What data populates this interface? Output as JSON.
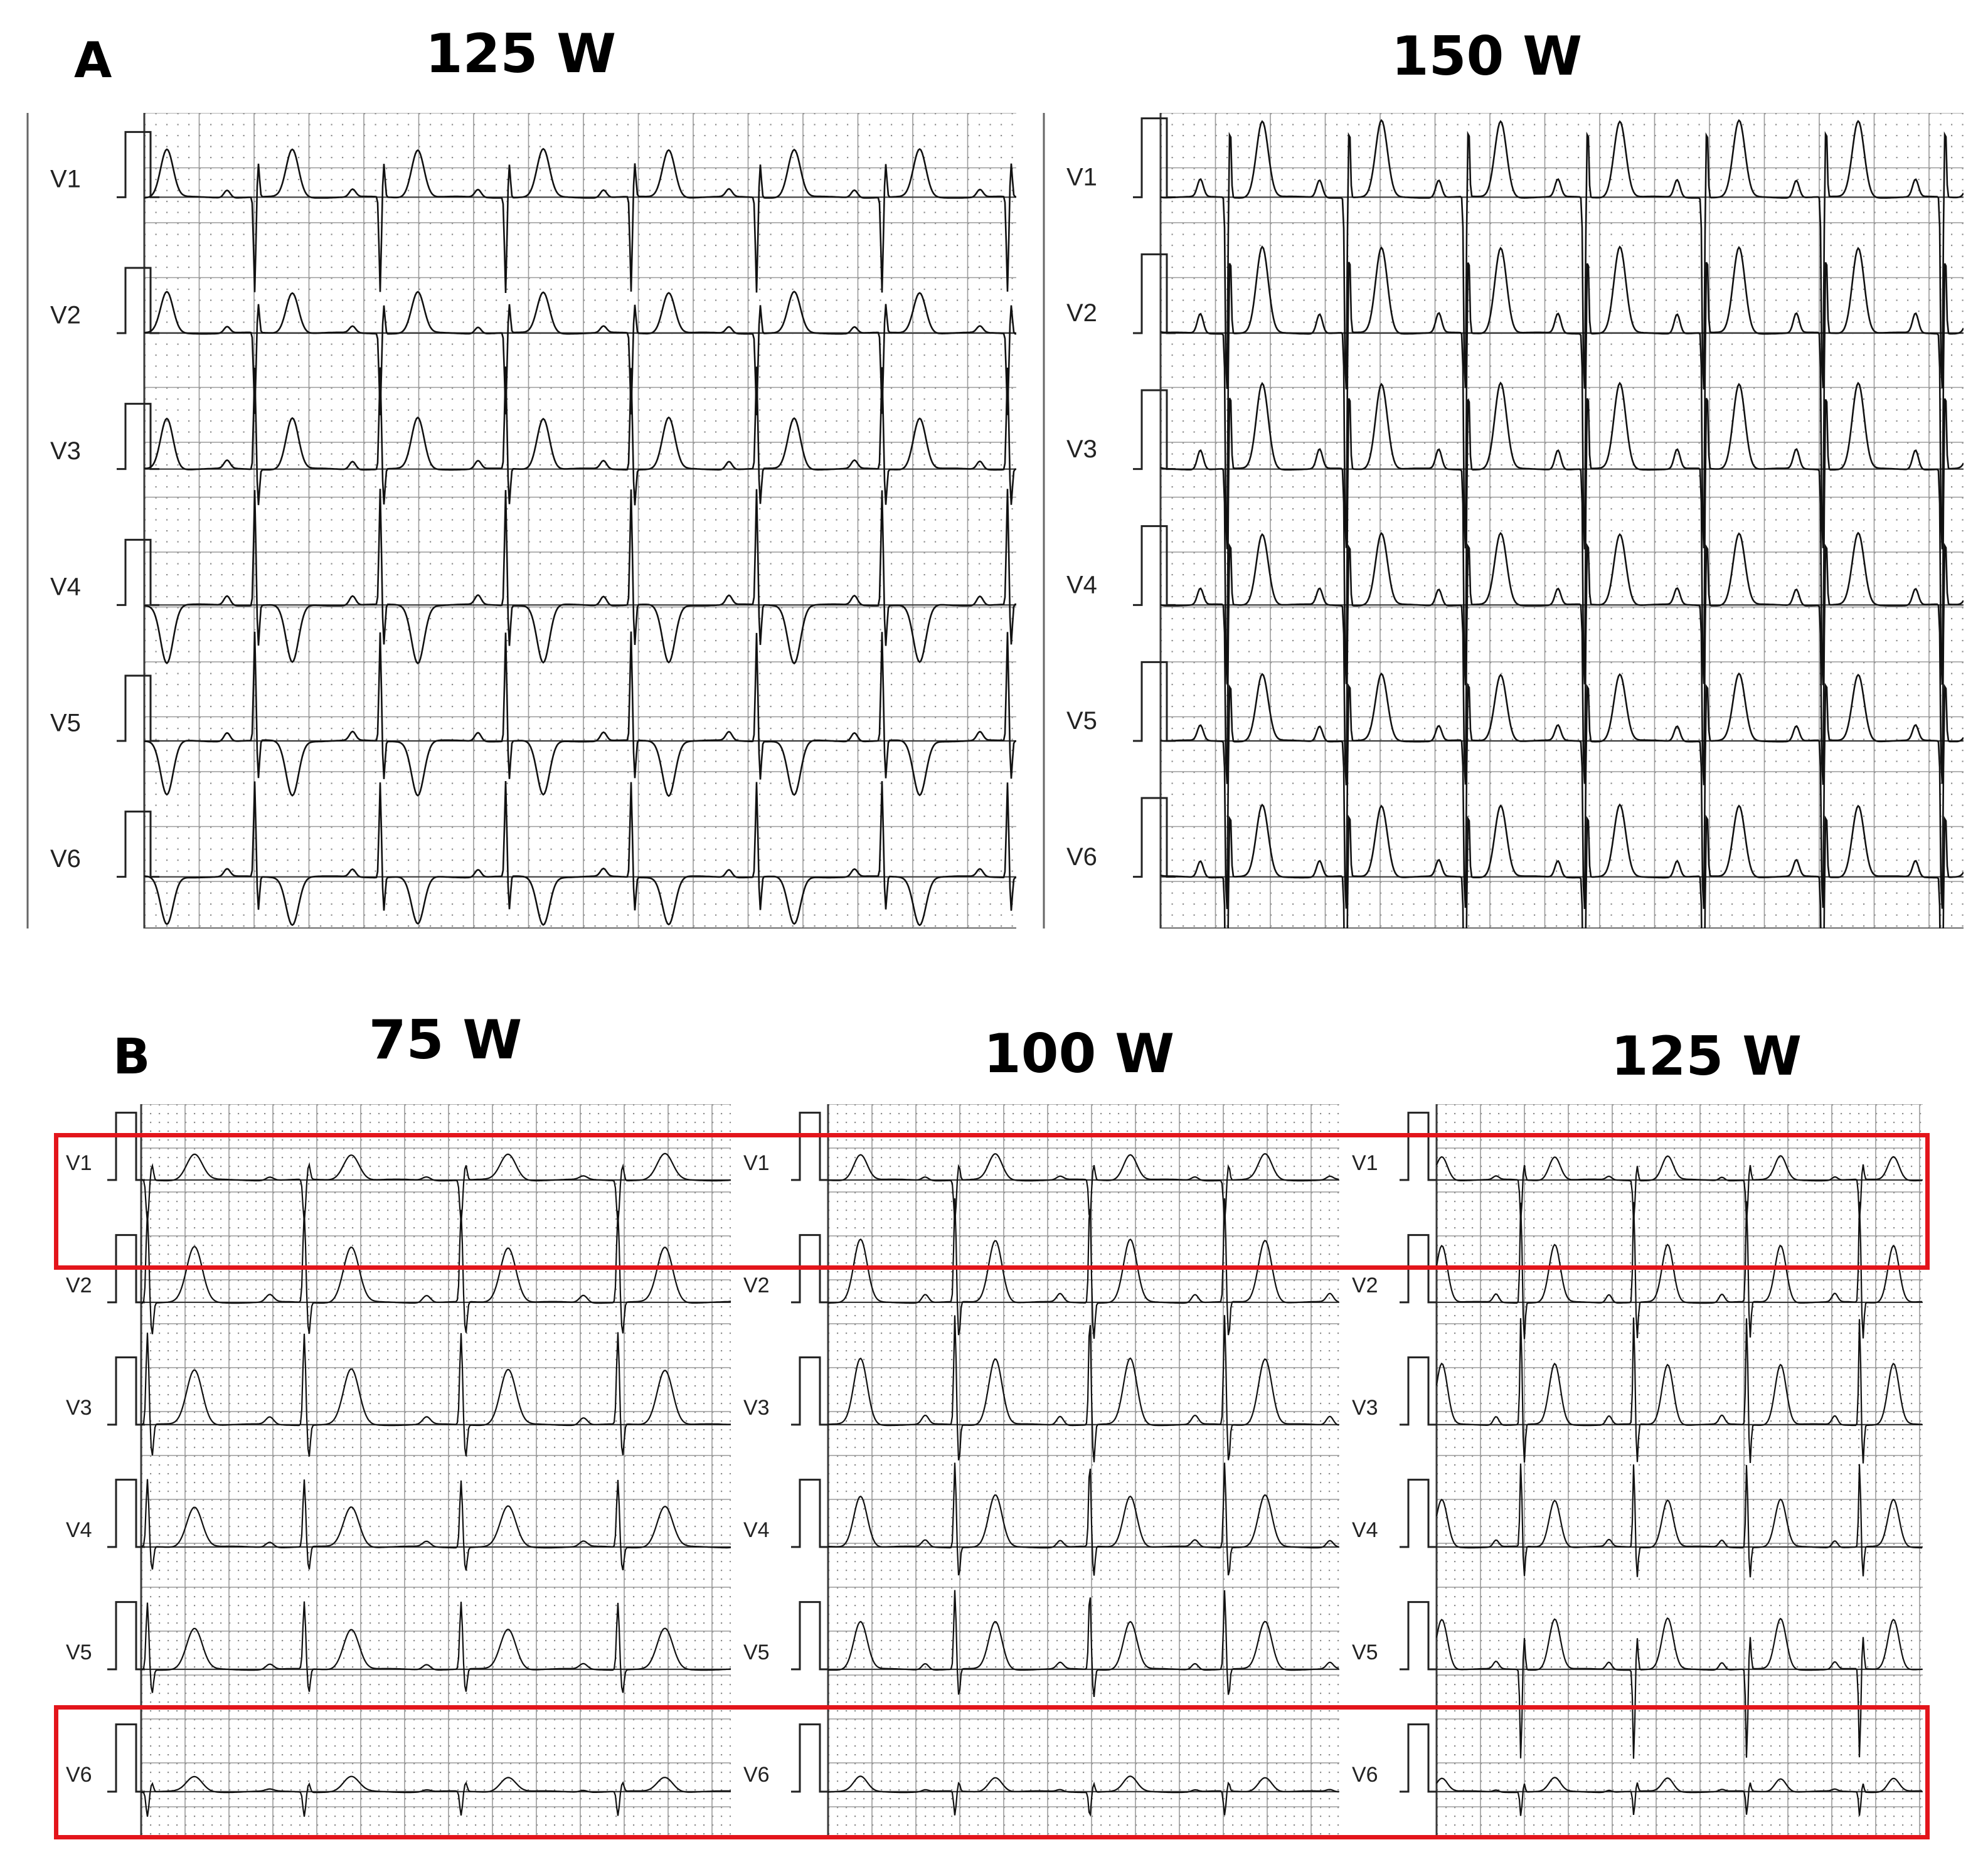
{
  "figure": {
    "section_a": {
      "label": "A",
      "panels": [
        {
          "title": "125 W",
          "leads": [
            "V1",
            "V2",
            "V3",
            "V4",
            "V5",
            "V6"
          ]
        },
        {
          "title": "150 W",
          "leads": [
            "V1",
            "V2",
            "V3",
            "V4",
            "V5",
            "V6"
          ]
        }
      ]
    },
    "section_b": {
      "label": "B",
      "panels": [
        {
          "title": "75 W",
          "leads": [
            "V1",
            "V2",
            "V3",
            "V4",
            "V5",
            "V6"
          ]
        },
        {
          "title": "100 W",
          "leads": [
            "V1",
            "V2",
            "V3",
            "V4",
            "V5",
            "V6"
          ]
        },
        {
          "title": "125 W",
          "leads": [
            "V1",
            "V2",
            "V3",
            "V4",
            "V5",
            "V6"
          ]
        }
      ],
      "highlighted_leads": [
        "V1",
        "V6"
      ]
    },
    "colors": {
      "trace": "#111111",
      "grid_dot": "#8c8c8c",
      "grid_major": "#3a3a3a",
      "highlight": "#e3151b"
    }
  }
}
